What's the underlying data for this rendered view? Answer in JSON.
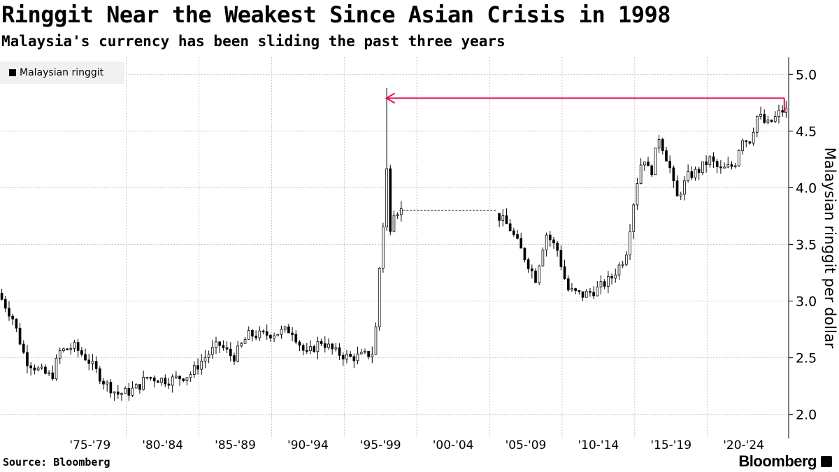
{
  "header": {
    "title": "Ringgit Near the Weakest Since Asian Crisis in 1998",
    "subtitle": "Malaysia's currency has been sliding the past three years"
  },
  "footer": {
    "source": "Source: Bloomberg",
    "brand": "Bloomberg"
  },
  "colors": {
    "up": "#ffffff",
    "down": "#000000",
    "arrow": "#e4134f",
    "grid": "#c8c8c8"
  },
  "chart_data": {
    "type": "candlestick",
    "ylabel": "Malaysian ringgit per dollar",
    "ylim": [
      1.85,
      5.15
    ],
    "yticks": [
      2.0,
      2.5,
      3.0,
      3.5,
      4.0,
      4.5,
      5.0
    ],
    "ytick_labels": [
      "2.0",
      "2.5",
      "3.0",
      "3.5",
      "4.0",
      "4.5",
      "5.0"
    ],
    "xlim": [
      1971.3,
      2025.6
    ],
    "x_gridlines": [
      1980,
      1985,
      1990,
      1995,
      2000,
      2005,
      2010,
      2015,
      2020
    ],
    "x_categories": [
      {
        "label": "'75-'79",
        "x": 1977.5
      },
      {
        "label": "'80-'84",
        "x": 1982.5
      },
      {
        "label": "'85-'89",
        "x": 1987.5
      },
      {
        "label": "'90-'94",
        "x": 1992.5
      },
      {
        "label": "'95-'99",
        "x": 1997.5
      },
      {
        "label": "'00-'04",
        "x": 2002.5
      },
      {
        "label": "'05-'09",
        "x": 2007.5
      },
      {
        "label": "'10-'14",
        "x": 2012.5
      },
      {
        "label": "'15-'19",
        "x": 2017.5
      },
      {
        "label": "'20-'24",
        "x": 2022.5
      }
    ],
    "legend": [
      {
        "name": "Malaysian ringgit",
        "position": "top-left"
      }
    ],
    "peg": {
      "from": 1998.8,
      "to": 2005.5,
      "value": 3.8
    },
    "annotation": {
      "type": "arrow",
      "from_x": 2025.3,
      "to_x": 1997.9,
      "value": 4.79
    },
    "anchors": [
      [
        1971.3,
        3.07
      ],
      [
        1972.3,
        2.85
      ],
      [
        1973.2,
        2.48
      ],
      [
        1974.2,
        2.38
      ],
      [
        1975.0,
        2.33
      ],
      [
        1975.5,
        2.55
      ],
      [
        1976.5,
        2.6
      ],
      [
        1977.5,
        2.48
      ],
      [
        1978.5,
        2.3
      ],
      [
        1979.5,
        2.18
      ],
      [
        1980.3,
        2.2
      ],
      [
        1981.0,
        2.25
      ],
      [
        1981.5,
        2.33
      ],
      [
        1983.0,
        2.3
      ],
      [
        1984.5,
        2.35
      ],
      [
        1985.5,
        2.5
      ],
      [
        1986.5,
        2.62
      ],
      [
        1987.5,
        2.5
      ],
      [
        1988.5,
        2.7
      ],
      [
        1989.5,
        2.7
      ],
      [
        1990.5,
        2.72
      ],
      [
        1991.5,
        2.75
      ],
      [
        1992.5,
        2.52
      ],
      [
        1993.5,
        2.65
      ],
      [
        1994.5,
        2.55
      ],
      [
        1995.5,
        2.5
      ],
      [
        1996.5,
        2.52
      ],
      [
        1997.2,
        2.55
      ],
      [
        1997.6,
        3.4
      ],
      [
        1998.0,
        4.2
      ],
      [
        1998.4,
        3.8
      ],
      [
        1998.8,
        3.8
      ],
      [
        2005.5,
        3.78
      ],
      [
        2006.5,
        3.65
      ],
      [
        2007.5,
        3.4
      ],
      [
        2008.3,
        3.2
      ],
      [
        2009.0,
        3.6
      ],
      [
        2009.8,
        3.45
      ],
      [
        2010.5,
        3.1
      ],
      [
        2011.5,
        3.05
      ],
      [
        2012.5,
        3.1
      ],
      [
        2013.5,
        3.2
      ],
      [
        2014.5,
        3.4
      ],
      [
        2015.2,
        4.0
      ],
      [
        2015.7,
        4.3
      ],
      [
        2016.2,
        4.1
      ],
      [
        2016.8,
        4.45
      ],
      [
        2017.5,
        4.2
      ],
      [
        2018.0,
        3.9
      ],
      [
        2018.8,
        4.1
      ],
      [
        2019.5,
        4.15
      ],
      [
        2020.3,
        4.25
      ],
      [
        2021.0,
        4.15
      ],
      [
        2022.0,
        4.2
      ],
      [
        2022.5,
        4.45
      ],
      [
        2023.0,
        4.4
      ],
      [
        2023.6,
        4.65
      ],
      [
        2024.2,
        4.55
      ],
      [
        2024.7,
        4.6
      ],
      [
        2025.2,
        4.68
      ]
    ]
  }
}
